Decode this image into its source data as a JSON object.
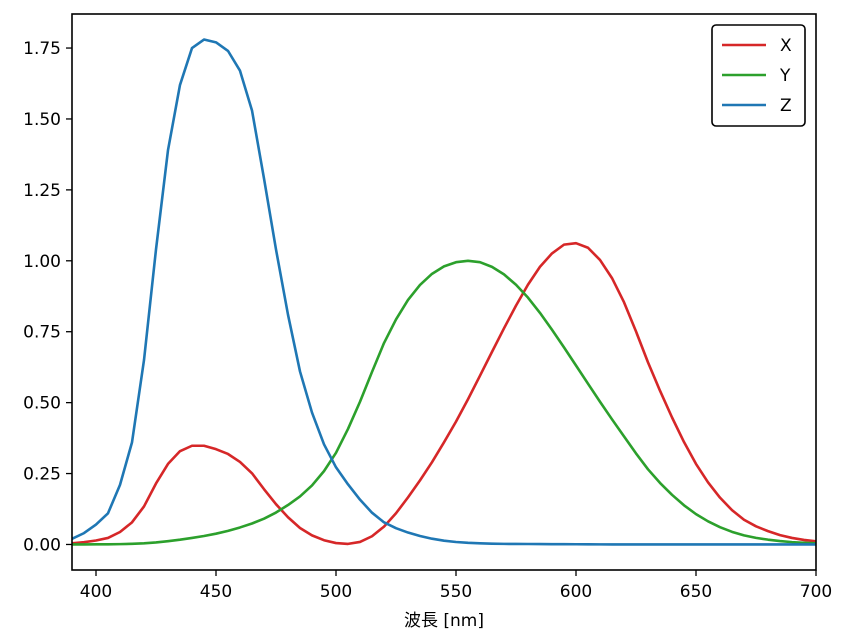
{
  "chart_data": {
    "type": "line",
    "title": "",
    "xlabel": "波長 [nm]",
    "ylabel": "",
    "xlim": [
      390,
      700
    ],
    "ylim": [
      -0.09,
      1.87
    ],
    "xticks": [
      400,
      450,
      500,
      550,
      600,
      650,
      700
    ],
    "xtick_labels": [
      "400",
      "450",
      "500",
      "550",
      "600",
      "650",
      "700"
    ],
    "yticks": [
      0.0,
      0.25,
      0.5,
      0.75,
      1.0,
      1.25,
      1.5,
      1.75
    ],
    "ytick_labels": [
      "0.00",
      "0.25",
      "0.50",
      "0.75",
      "1.00",
      "1.25",
      "1.50",
      "1.75"
    ],
    "grid": false,
    "legend_position": "top-right",
    "x": [
      390,
      395,
      400,
      405,
      410,
      415,
      420,
      425,
      430,
      435,
      440,
      445,
      450,
      455,
      460,
      465,
      470,
      475,
      480,
      485,
      490,
      495,
      500,
      505,
      510,
      515,
      520,
      525,
      530,
      535,
      540,
      545,
      550,
      555,
      560,
      565,
      570,
      575,
      580,
      585,
      590,
      595,
      600,
      605,
      610,
      615,
      620,
      625,
      630,
      635,
      640,
      645,
      650,
      655,
      660,
      665,
      670,
      675,
      680,
      685,
      690,
      695,
      700
    ],
    "series": [
      {
        "name": "X",
        "color": "#d62728",
        "values": [
          0.004,
          0.008,
          0.014,
          0.023,
          0.044,
          0.078,
          0.134,
          0.215,
          0.284,
          0.329,
          0.348,
          0.348,
          0.336,
          0.319,
          0.291,
          0.251,
          0.195,
          0.142,
          0.096,
          0.058,
          0.032,
          0.015,
          0.005,
          0.002,
          0.009,
          0.029,
          0.063,
          0.11,
          0.166,
          0.226,
          0.29,
          0.36,
          0.433,
          0.512,
          0.595,
          0.679,
          0.762,
          0.842,
          0.916,
          0.979,
          1.026,
          1.057,
          1.062,
          1.046,
          1.003,
          0.939,
          0.854,
          0.751,
          0.642,
          0.542,
          0.448,
          0.361,
          0.284,
          0.219,
          0.165,
          0.121,
          0.087,
          0.064,
          0.047,
          0.033,
          0.023,
          0.016,
          0.011
        ]
      },
      {
        "name": "Y",
        "color": "#2ca02c",
        "values": [
          0.0001,
          0.0002,
          0.0004,
          0.0006,
          0.0012,
          0.0022,
          0.004,
          0.0073,
          0.0116,
          0.0168,
          0.023,
          0.0298,
          0.038,
          0.048,
          0.06,
          0.0739,
          0.091,
          0.1126,
          0.139,
          0.1693,
          0.208,
          0.2586,
          0.323,
          0.4073,
          0.503,
          0.6082,
          0.71,
          0.7932,
          0.862,
          0.9149,
          0.954,
          0.9803,
          0.995,
          1.0,
          0.995,
          0.9786,
          0.952,
          0.9154,
          0.87,
          0.8163,
          0.757,
          0.6949,
          0.631,
          0.5668,
          0.503,
          0.4412,
          0.381,
          0.321,
          0.265,
          0.217,
          0.175,
          0.1382,
          0.107,
          0.0816,
          0.061,
          0.0446,
          0.032,
          0.0232,
          0.017,
          0.0119,
          0.0082,
          0.0057,
          0.0041
        ]
      },
      {
        "name": "Z",
        "color": "#1f77b4",
        "values": [
          0.02,
          0.04,
          0.07,
          0.11,
          0.21,
          0.36,
          0.65,
          1.04,
          1.39,
          1.62,
          1.75,
          1.78,
          1.77,
          1.74,
          1.67,
          1.53,
          1.29,
          1.04,
          0.81,
          0.61,
          0.465,
          0.353,
          0.272,
          0.212,
          0.158,
          0.112,
          0.078,
          0.0573,
          0.042,
          0.0298,
          0.0203,
          0.0134,
          0.0087,
          0.0057,
          0.0039,
          0.0028,
          0.0021,
          0.0018,
          0.0017,
          0.0014,
          0.0011,
          0.001,
          0.0008,
          0.0006,
          0.0003,
          0.0002,
          0.0002,
          0.0001,
          0.0,
          0.0,
          0.0,
          0.0,
          0.0,
          0.0,
          0.0,
          0.0,
          0.0,
          0.0,
          0.0,
          0.0,
          0.0,
          0.0,
          0.0
        ]
      }
    ]
  }
}
